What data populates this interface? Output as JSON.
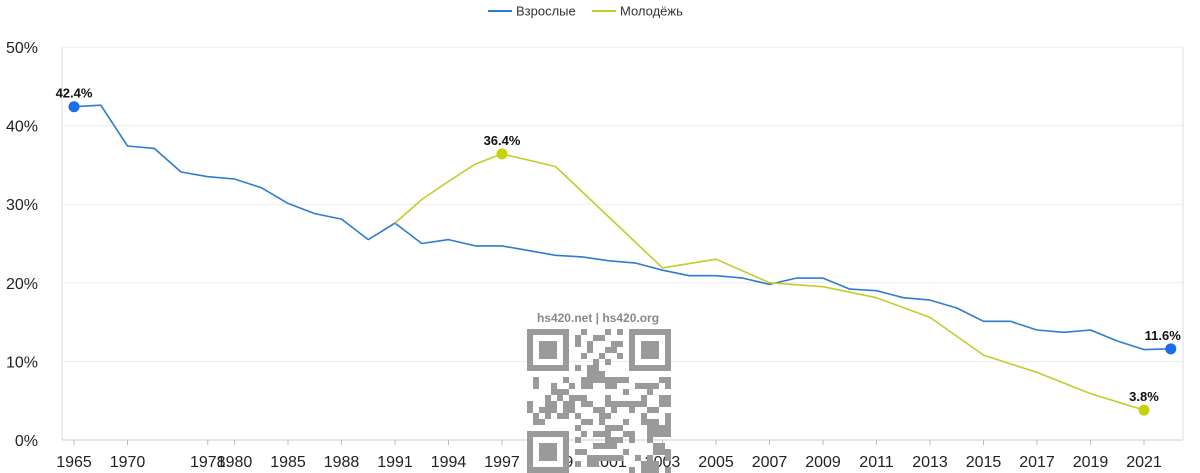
{
  "chart_data": {
    "type": "line",
    "title": "",
    "xlabel": "",
    "ylabel": "",
    "categories": [
      "1965",
      "1966",
      "1970",
      "1972",
      "1974",
      "1978",
      "1980",
      "1983",
      "1985",
      "1987",
      "1988",
      "1990",
      "1991",
      "1992",
      "1994",
      "1996",
      "1997",
      "1998",
      "1999",
      "2000",
      "2001",
      "2002",
      "2003",
      "2004",
      "2005",
      "2006",
      "2007",
      "2008",
      "2009",
      "2010",
      "2011",
      "2012",
      "2013",
      "2014",
      "2015",
      "2016",
      "2017",
      "2018",
      "2019",
      "2020",
      "2021",
      "2022"
    ],
    "tick_labels": [
      "1965",
      "1970",
      "1978",
      "1980",
      "1985",
      "1988",
      "1991",
      "1994",
      "1997",
      "1999",
      "2001",
      "2003",
      "2005",
      "2007",
      "2009",
      "2011",
      "2013",
      "2015",
      "2017",
      "2019",
      "2021"
    ],
    "tick_positions": [
      0,
      2,
      5,
      6,
      8,
      10,
      12,
      14,
      16,
      18,
      20,
      22,
      24,
      26,
      28,
      30,
      32,
      34,
      36,
      38,
      40
    ],
    "y_ticks": [
      "0%",
      "10%",
      "20%",
      "30%",
      "40%",
      "50%"
    ],
    "ylim": [
      0,
      50
    ],
    "grid": "horizontal",
    "legend_position": "top-center",
    "series": [
      {
        "name": "Взрослые",
        "color": "#2f7bd1",
        "marker_color": "#1a6ee8",
        "values": [
          42.4,
          42.6,
          37.4,
          37.1,
          34.1,
          33.5,
          33.2,
          32.1,
          30.1,
          28.8,
          28.1,
          25.5,
          27.6,
          25.0,
          25.5,
          24.7,
          24.7,
          24.1,
          23.5,
          23.3,
          22.8,
          22.5,
          21.6,
          20.9,
          20.9,
          20.6,
          19.8,
          20.6,
          20.6,
          19.2,
          19.0,
          18.1,
          17.8,
          16.8,
          15.1,
          15.1,
          14.0,
          13.7,
          14.0,
          12.6,
          11.5,
          11.6
        ],
        "labels": [
          {
            "index": 0,
            "text": "42.4%"
          },
          {
            "index": 41,
            "text": "11.6%"
          }
        ]
      },
      {
        "name": "Молодёжь",
        "color": "#c3cc2a",
        "marker_color": "#c3d40e",
        "values": [
          null,
          null,
          null,
          null,
          null,
          null,
          null,
          null,
          null,
          null,
          null,
          null,
          27.6,
          30.6,
          32.9,
          35.1,
          36.4,
          null,
          34.8,
          null,
          null,
          null,
          21.9,
          null,
          23.0,
          null,
          20.0,
          null,
          19.5,
          null,
          18.1,
          null,
          15.6,
          null,
          10.8,
          null,
          8.6,
          null,
          5.9,
          null,
          3.8,
          null
        ],
        "labels": [
          {
            "index": 16,
            "text": "36.4%"
          },
          {
            "index": 40,
            "text": "3.8%"
          }
        ]
      }
    ]
  },
  "watermark": {
    "text": "hs420.net | hs420.org"
  }
}
